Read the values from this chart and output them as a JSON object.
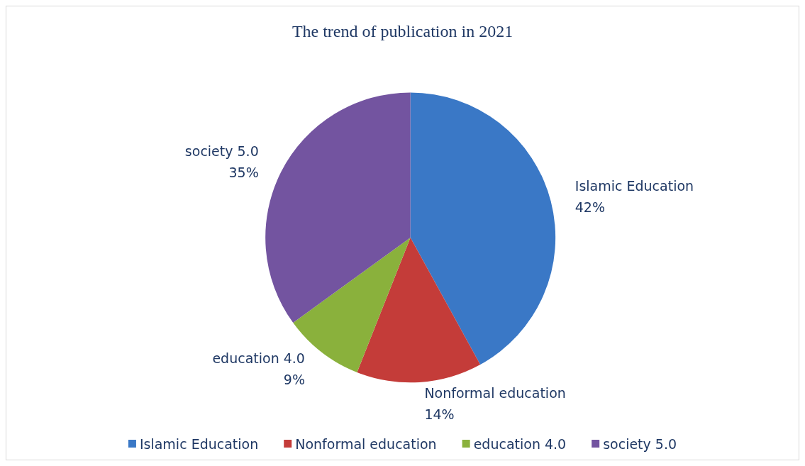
{
  "chart_data": {
    "type": "pie",
    "title": "The trend of publication in 2021",
    "categories": [
      "Islamic Education",
      "Nonformal education",
      "education 4.0",
      "society 5.0"
    ],
    "values": [
      42,
      14,
      9,
      35
    ],
    "value_labels": [
      "42%",
      "14%",
      "9%",
      "35%"
    ],
    "colors": [
      "#3a78c6",
      "#c43c39",
      "#8ab13c",
      "#7354a0"
    ],
    "legend": "bottom"
  }
}
